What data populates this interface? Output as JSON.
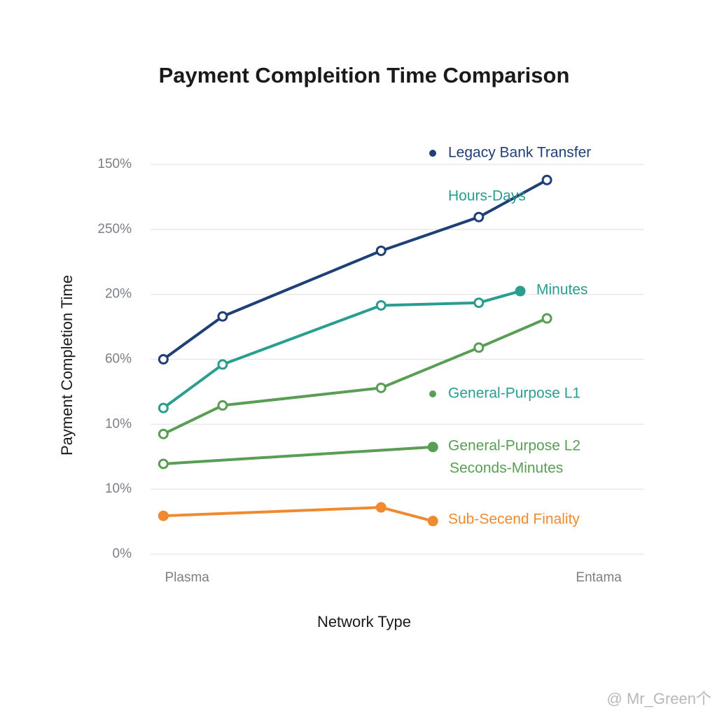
{
  "chart_data": {
    "type": "line",
    "title": "Payment Compleition Time Comparison",
    "x_label": "Network Type",
    "y_label": "Payment Completion Time",
    "xlim": [
      0,
      100
    ],
    "xticks": [
      {
        "value": 7.4,
        "label": "Plasma"
      },
      {
        "value": 90.8,
        "label": "Entama"
      }
    ],
    "ylim": [
      0,
      6
    ],
    "yticks": [
      {
        "value": 0,
        "label": "0%"
      },
      {
        "value": 1,
        "label": "10%"
      },
      {
        "value": 2,
        "label": "10%"
      },
      {
        "value": 3,
        "label": "60%"
      },
      {
        "value": 4,
        "label": "20%"
      },
      {
        "value": 5,
        "label": "250%"
      },
      {
        "value": 6,
        "label": "150%"
      }
    ],
    "grid": true,
    "series": [
      {
        "color": "#1f3f77",
        "x": [
          2.6,
          14.6,
          46.7,
          66.5,
          80.3
        ],
        "values": [
          3.0,
          3.66,
          4.67,
          5.19,
          5.76
        ]
      },
      {
        "color": "#2a9d8f",
        "x": [
          2.6,
          14.6,
          46.7,
          66.5,
          74.9
        ],
        "values": [
          2.25,
          2.92,
          3.83,
          3.87,
          4.05
        ]
      },
      {
        "color": "#5a9e55",
        "x": [
          2.6,
          14.6,
          46.7,
          66.5,
          80.3
        ],
        "values": [
          1.85,
          2.29,
          2.56,
          3.18,
          3.63
        ]
      },
      {
        "color": "#5a9e55",
        "x": [
          2.6,
          57.2
        ],
        "values": [
          1.39,
          1.65
        ]
      },
      {
        "color": "#f08a30",
        "x": [
          2.6,
          46.7,
          57.2
        ],
        "values": [
          0.59,
          0.72,
          0.51
        ]
      }
    ],
    "annotations": [
      {
        "text": "Legacy Bank Transfer",
        "color": "#1f3f77"
      },
      {
        "text": "Hours-Days",
        "color": "#2a9d8f"
      },
      {
        "text": "Minutes",
        "color": "#2a9d8f"
      },
      {
        "text": "General-Purpose L1",
        "color": "#2a9d8f"
      },
      {
        "text": "General-Purpose L2",
        "color": "#5a9e55"
      },
      {
        "text": "Seconds-Minutes",
        "color": "#5a9e55"
      },
      {
        "text": "Sub-Secend Finality",
        "color": "#f08a30"
      }
    ],
    "watermark": "@ Mr_Green个"
  }
}
